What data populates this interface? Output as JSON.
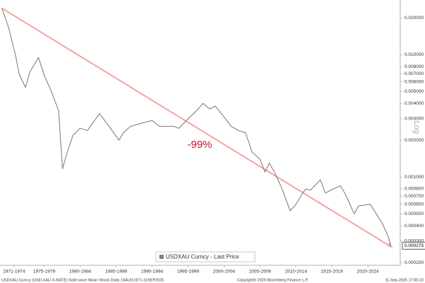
{
  "chart_data": {
    "type": "line",
    "log_scale": true,
    "y_scale_label": "Log",
    "annotation": "-99%",
    "annotation_color": "#c8102e",
    "legend": "bottom",
    "last_price": 0.000275,
    "footer_left": "USDXAU Curncy (USD-XAU X-RATE) Gold since Nixon Shock  Daily 15AUG1971-11SEP2025",
    "footer_center": "Copyright© 2025 Bloomberg Finance L.P.",
    "footer_right": "11-Sep-2025 17:00:23",
    "xlim": [
      1971.35,
      2027.0
    ],
    "xticks": [
      {
        "value": 1973.3,
        "label": "1971-1974"
      },
      {
        "value": 1977.5,
        "label": "1975-1979"
      },
      {
        "value": 1982.5,
        "label": "1980-1984"
      },
      {
        "value": 1987.5,
        "label": "1985-1989"
      },
      {
        "value": 1992.5,
        "label": "1990-1994"
      },
      {
        "value": 1997.5,
        "label": "1995-1999"
      },
      {
        "value": 2002.5,
        "label": "2000-2004"
      },
      {
        "value": 2007.5,
        "label": "2005-2009"
      },
      {
        "value": 2012.5,
        "label": "2010-2014"
      },
      {
        "value": 2017.5,
        "label": "2015-2019"
      },
      {
        "value": 2022.5,
        "label": "2020-2024"
      }
    ],
    "ylim": [
      0.00019,
      0.028
    ],
    "yticks": [
      {
        "value": 0.02,
        "label": "0.020000"
      },
      {
        "value": 0.01,
        "label": "0.010000"
      },
      {
        "value": 0.008,
        "label": "0.008000"
      },
      {
        "value": 0.007,
        "label": "0.007000"
      },
      {
        "value": 0.006,
        "label": "0.006000"
      },
      {
        "value": 0.005,
        "label": "0.005000"
      },
      {
        "value": 0.004,
        "label": "0.004000"
      },
      {
        "value": 0.003,
        "label": "0.003000"
      },
      {
        "value": 0.002,
        "label": "0.002000"
      },
      {
        "value": 0.001,
        "label": "0.001000"
      },
      {
        "value": 0.0008,
        "label": "0.000800"
      },
      {
        "value": 0.0007,
        "label": "0.000700"
      },
      {
        "value": 0.0006,
        "label": "0.000600"
      },
      {
        "value": 0.0005,
        "label": "0.000500"
      },
      {
        "value": 0.0004,
        "label": "0.000400"
      },
      {
        "value": 0.0003,
        "label": "0.000300"
      },
      {
        "value": 0.0002,
        "label": "0.000200"
      }
    ],
    "x": [
      1971.6,
      1972.5,
      1973.5,
      1974.0,
      1974.9,
      1975.5,
      1976.7,
      1977.5,
      1978.5,
      1979.5,
      1980.05,
      1980.7,
      1981.5,
      1982.5,
      1983.5,
      1984.5,
      1985.2,
      1986.5,
      1987.9,
      1988.5,
      1989.5,
      1990.5,
      1991.5,
      1992.5,
      1993.5,
      1994.5,
      1995.5,
      1996.2,
      1997.5,
      1998.5,
      1999.6,
      2000.5,
      2001.3,
      2002.5,
      2003.5,
      2004.5,
      2005.5,
      2006.4,
      2007.5,
      2008.2,
      2008.8,
      2009.5,
      2010.5,
      2011.7,
      2012.5,
      2013.5,
      2013.9,
      2014.5,
      2015.9,
      2016.6,
      2017.5,
      2018.7,
      2019.5,
      2020.6,
      2021.2,
      2022.8,
      2023.5,
      2024.5,
      2025.3,
      2025.7
    ],
    "series": [
      {
        "name": "USDXAU Curncy - Last Price",
        "color": "#8a7f77",
        "values": [
          0.024,
          0.017,
          0.01,
          0.007,
          0.0054,
          0.0072,
          0.0095,
          0.0068,
          0.005,
          0.0035,
          0.00117,
          0.0016,
          0.0022,
          0.0025,
          0.0024,
          0.0029,
          0.0033,
          0.0026,
          0.002,
          0.0023,
          0.0026,
          0.0027,
          0.0028,
          0.0029,
          0.0026,
          0.0026,
          0.0026,
          0.0025,
          0.003,
          0.0034,
          0.004,
          0.0036,
          0.0038,
          0.0031,
          0.0026,
          0.0024,
          0.0023,
          0.0016,
          0.0014,
          0.0011,
          0.0013,
          0.0011,
          0.00082,
          0.00053,
          0.0006,
          0.00075,
          0.0008,
          0.00078,
          0.00095,
          0.00074,
          0.00079,
          0.00085,
          0.0007,
          0.0005,
          0.00058,
          0.0006,
          0.00052,
          0.00042,
          0.00033,
          0.000275
        ]
      }
    ],
    "trendline": {
      "color": "#f4a3a0",
      "x": [
        1971.6,
        2025.7
      ],
      "values": [
        0.024,
        0.00027
      ]
    }
  }
}
